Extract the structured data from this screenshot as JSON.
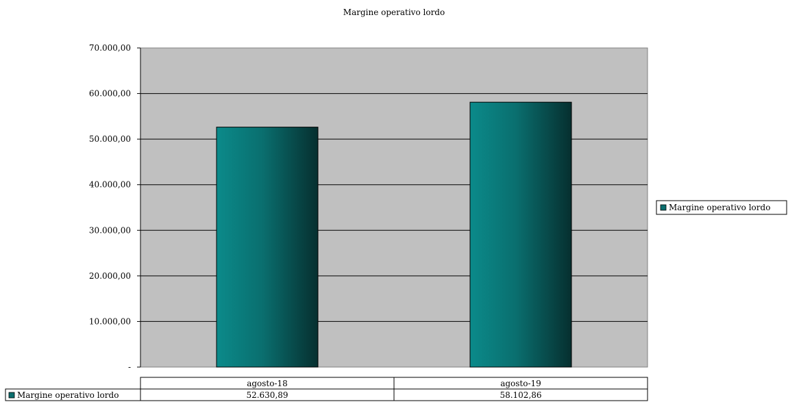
{
  "chart_data": {
    "type": "bar",
    "title": "Margine operativo lordo",
    "categories": [
      "agosto-18",
      "agosto-19"
    ],
    "series": [
      {
        "name": "Margine operativo lordo",
        "values": [
          52630.89,
          58102.86
        ]
      }
    ],
    "value_labels": [
      "52.630,89",
      "58.102,86"
    ],
    "ylim": [
      0,
      70000
    ],
    "yticks": [
      0,
      10000,
      20000,
      30000,
      40000,
      50000,
      60000,
      70000
    ],
    "ytick_labels": [
      "-",
      "10.000,00",
      "20.000,00",
      "30.000,00",
      "40.000,00",
      "50.000,00",
      "60.000,00",
      "70.000,00"
    ],
    "grid": true,
    "legend_position": "right",
    "data_table": true,
    "colors": {
      "plot_bg": "#c0c0c0",
      "bar_light": "#0b8a8a",
      "bar_dark": "#073838",
      "grid": "#000000"
    }
  }
}
